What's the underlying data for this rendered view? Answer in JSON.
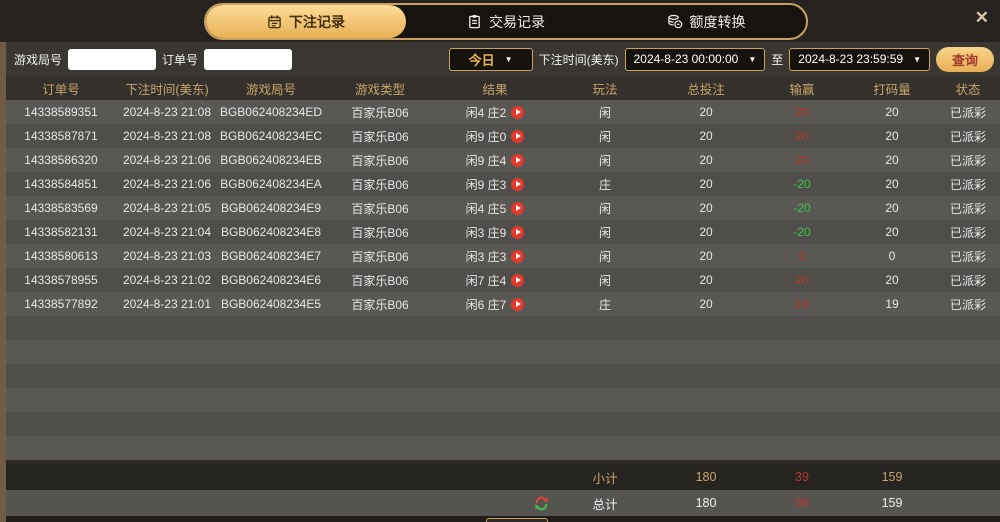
{
  "window": {
    "close_icon": "✕"
  },
  "tabs": [
    {
      "label": "下注记录",
      "icon": "ledger-icon",
      "active": true
    },
    {
      "label": "交易记录",
      "icon": "clipboard-icon",
      "active": false
    },
    {
      "label": "额度转换",
      "icon": "coins-icon",
      "active": false
    }
  ],
  "filters": {
    "game_round_label": "游戏局号",
    "order_no_label": "订单号",
    "range_select": {
      "value": "今日",
      "caret": "▼"
    },
    "bet_time_label": "下注时间(美东)",
    "date_from": "2024-8-23 00:00:00",
    "to_label": "至",
    "date_to": "2024-8-23 23:59:59",
    "query_button": "查询"
  },
  "table": {
    "headers": [
      "订单号",
      "下注时间(美东)",
      "游戏局号",
      "游戏类型",
      "结果",
      "玩法",
      "总投注",
      "输赢",
      "打码量",
      "状态"
    ],
    "rows": [
      {
        "order_id": "14338589351",
        "bet_time": "2024-8-23 21:08",
        "round_id": "BGB062408234ED",
        "game_type": "百家乐B06",
        "result": "闲4 庄2",
        "play": "闲",
        "total_bet": "20",
        "win_loss": "20",
        "trend": "win",
        "turnover": "20",
        "status": "已派彩"
      },
      {
        "order_id": "14338587871",
        "bet_time": "2024-8-23 21:08",
        "round_id": "BGB062408234EC",
        "game_type": "百家乐B06",
        "result": "闲9 庄0",
        "play": "闲",
        "total_bet": "20",
        "win_loss": "20",
        "trend": "win",
        "turnover": "20",
        "status": "已派彩"
      },
      {
        "order_id": "14338586320",
        "bet_time": "2024-8-23 21:06",
        "round_id": "BGB062408234EB",
        "game_type": "百家乐B06",
        "result": "闲9 庄4",
        "play": "闲",
        "total_bet": "20",
        "win_loss": "20",
        "trend": "win",
        "turnover": "20",
        "status": "已派彩"
      },
      {
        "order_id": "14338584851",
        "bet_time": "2024-8-23 21:06",
        "round_id": "BGB062408234EA",
        "game_type": "百家乐B06",
        "result": "闲9 庄3",
        "play": "庄",
        "total_bet": "20",
        "win_loss": "-20",
        "trend": "loss",
        "turnover": "20",
        "status": "已派彩"
      },
      {
        "order_id": "14338583569",
        "bet_time": "2024-8-23 21:05",
        "round_id": "BGB062408234E9",
        "game_type": "百家乐B06",
        "result": "闲4 庄5",
        "play": "闲",
        "total_bet": "20",
        "win_loss": "-20",
        "trend": "loss",
        "turnover": "20",
        "status": "已派彩"
      },
      {
        "order_id": "14338582131",
        "bet_time": "2024-8-23 21:04",
        "round_id": "BGB062408234E8",
        "game_type": "百家乐B06",
        "result": "闲3 庄9",
        "play": "闲",
        "total_bet": "20",
        "win_loss": "-20",
        "trend": "loss",
        "turnover": "20",
        "status": "已派彩"
      },
      {
        "order_id": "14338580613",
        "bet_time": "2024-8-23 21:03",
        "round_id": "BGB062408234E7",
        "game_type": "百家乐B06",
        "result": "闲3 庄3",
        "play": "闲",
        "total_bet": "20",
        "win_loss": "0",
        "trend": "win",
        "turnover": "0",
        "status": "已派彩"
      },
      {
        "order_id": "14338578955",
        "bet_time": "2024-8-23 21:02",
        "round_id": "BGB062408234E6",
        "game_type": "百家乐B06",
        "result": "闲7 庄4",
        "play": "闲",
        "total_bet": "20",
        "win_loss": "20",
        "trend": "win",
        "turnover": "20",
        "status": "已派彩"
      },
      {
        "order_id": "14338577892",
        "bet_time": "2024-8-23 21:01",
        "round_id": "BGB062408234E5",
        "game_type": "百家乐B06",
        "result": "闲6 庄7",
        "play": "庄",
        "total_bet": "20",
        "win_loss": "19",
        "trend": "win",
        "turnover": "19",
        "status": "已派彩"
      }
    ],
    "empty_row_count": 6
  },
  "summary": {
    "subtotal": {
      "label": "小计",
      "total_bet": "180",
      "win_loss": "39",
      "turnover": "159"
    },
    "total": {
      "label": "总计",
      "total_bet": "180",
      "win_loss": "39",
      "turnover": "159"
    }
  },
  "colors": {
    "accent_gold": "#c9a05c",
    "win_red": "#b43a2e",
    "loss_green": "#3fc24a"
  }
}
